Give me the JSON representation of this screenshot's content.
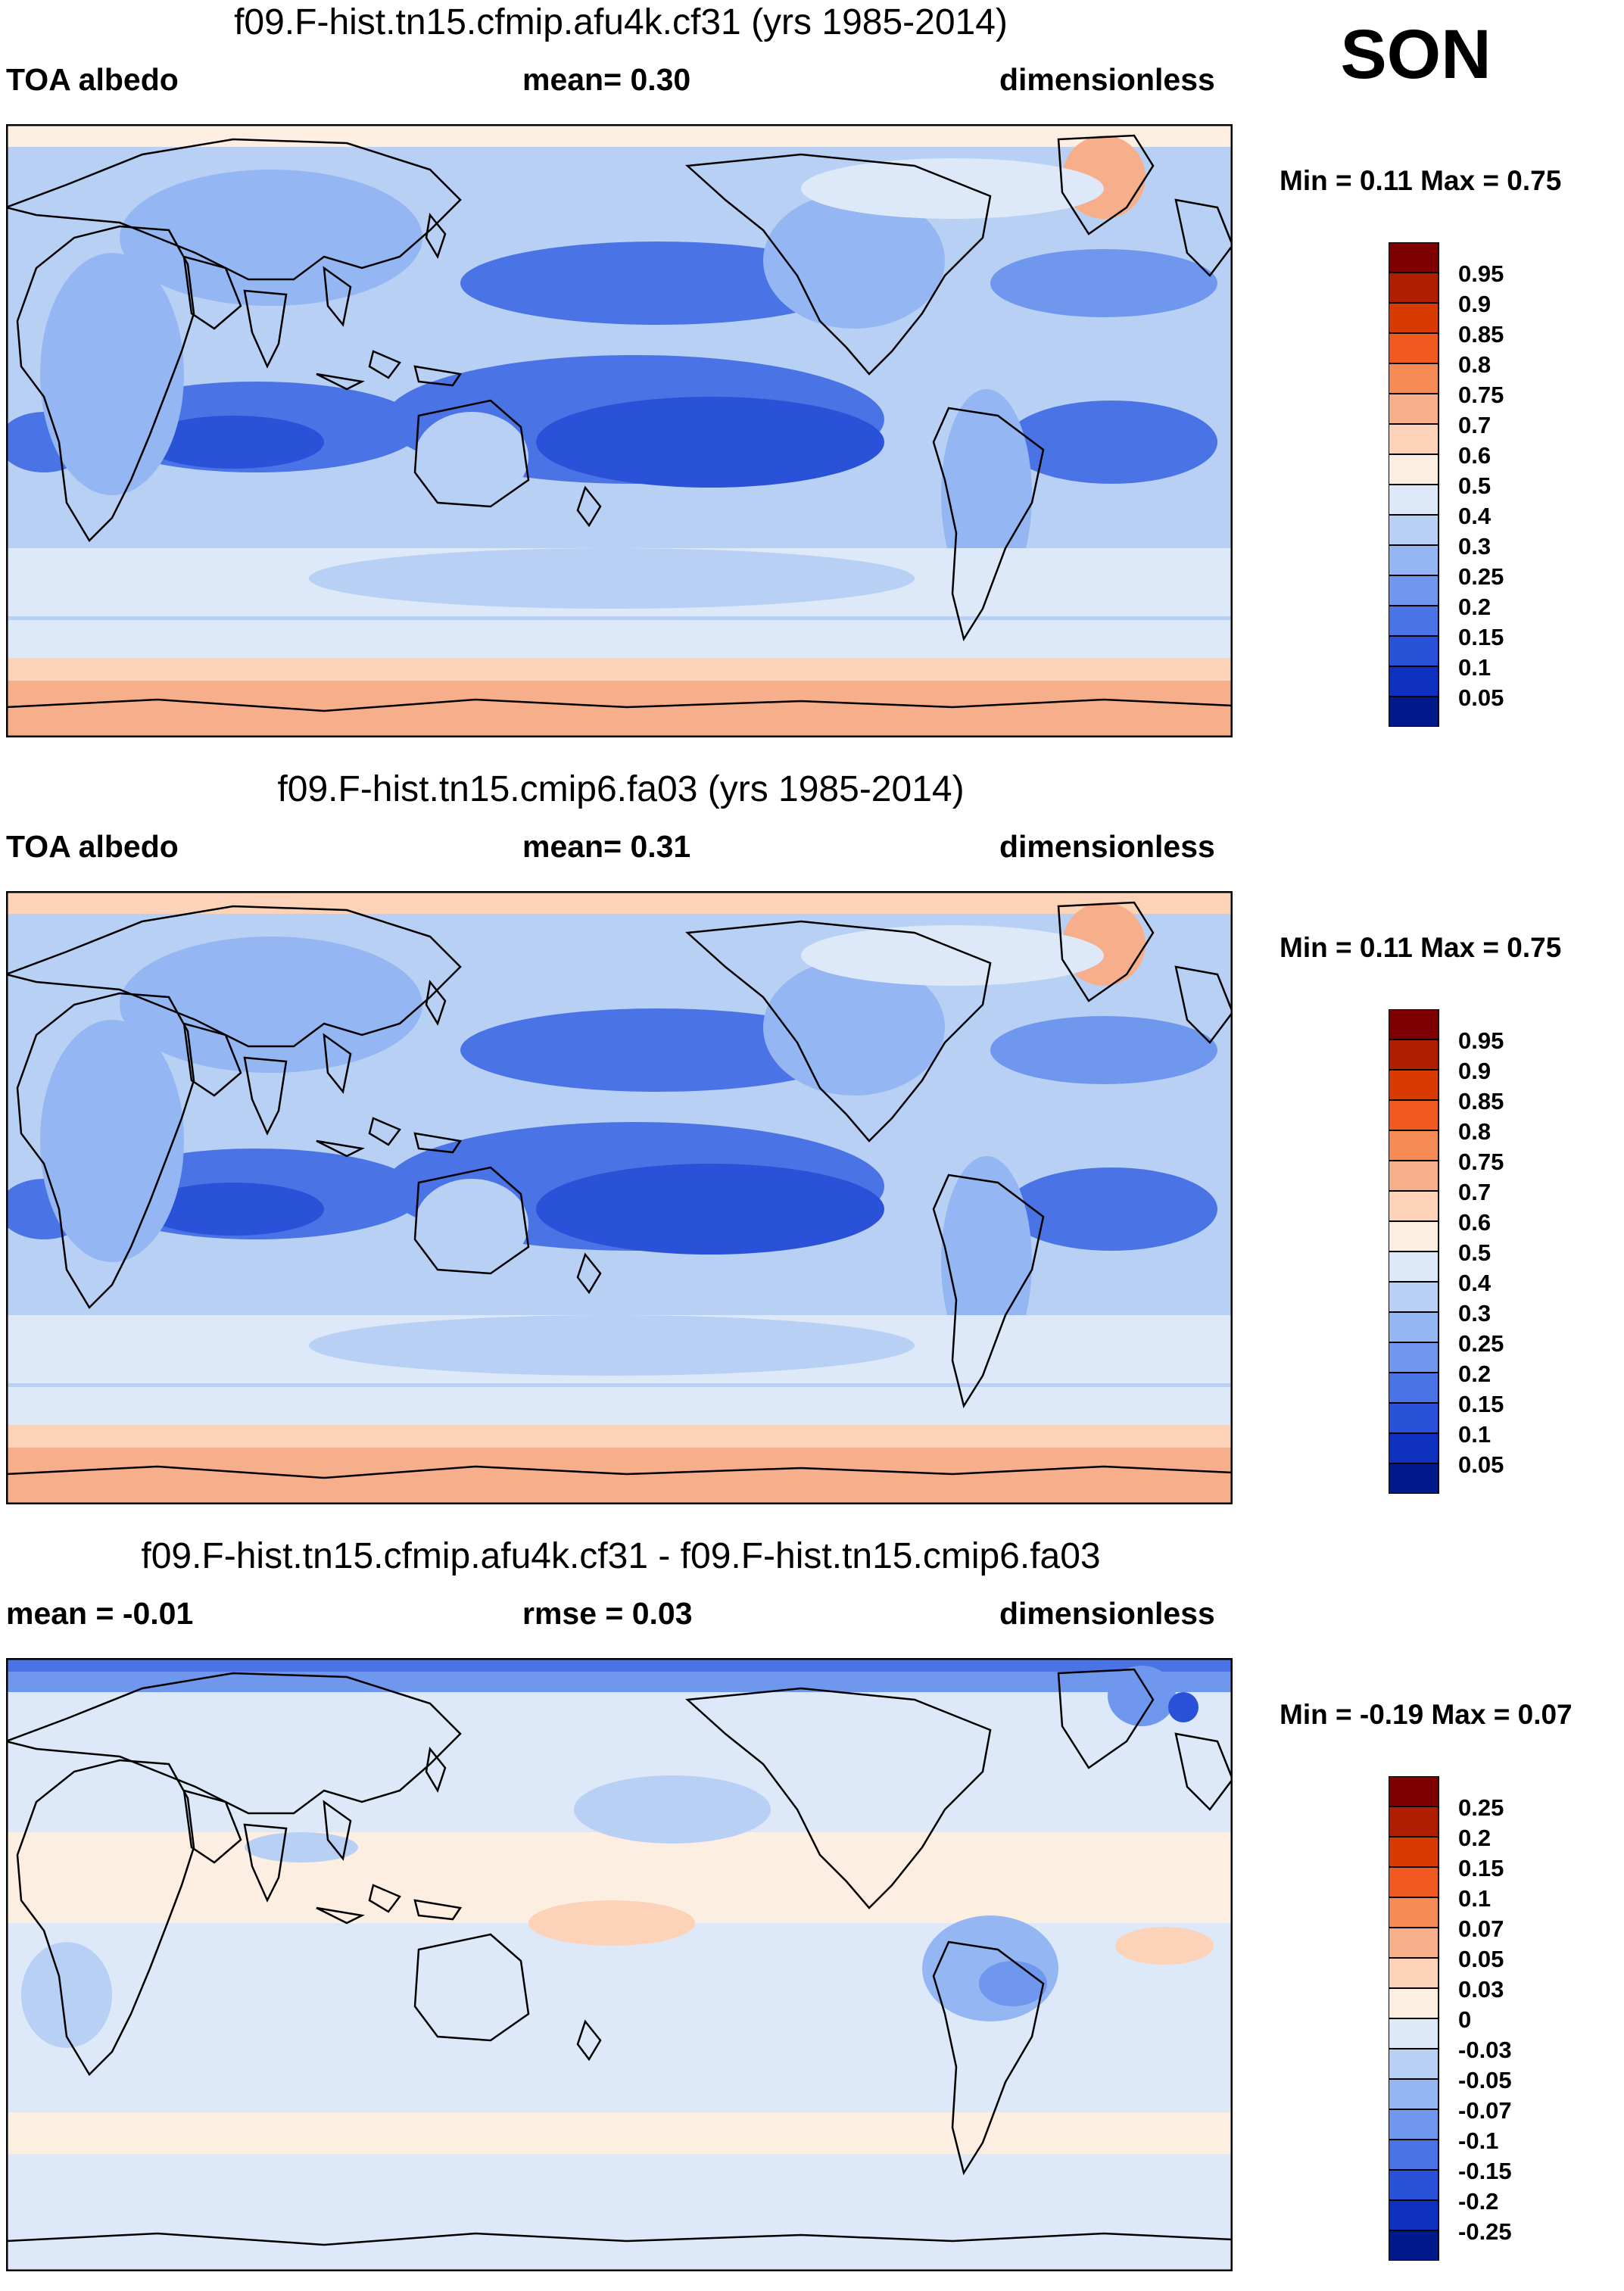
{
  "season": "SON",
  "panels": [
    {
      "title": "f09.F-hist.tn15.cfmip.afu4k.cf31 (yrs 1985-2014)",
      "left_label": "TOA albedo",
      "center_label": "mean=   0.30",
      "right_label": "dimensionless",
      "minmax": "Min =   0.11 Max =   0.75"
    },
    {
      "title": "f09.F-hist.tn15.cmip6.fa03 (yrs 1985-2014)",
      "left_label": "TOA albedo",
      "center_label": "mean=   0.31",
      "right_label": "dimensionless",
      "minmax": "Min =   0.11 Max =   0.75"
    },
    {
      "title": "f09.F-hist.tn15.cfmip.afu4k.cf31 - f09.F-hist.tn15.cmip6.fa03",
      "left_label": "mean =  -0.01",
      "center_label": "rmse =   0.03",
      "right_label": "dimensionless",
      "minmax": "Min =  -0.19 Max =   0.07"
    }
  ],
  "chart_data": [
    {
      "type": "heatmap",
      "title": "f09.F-hist.tn15.cfmip.afu4k.cf31 (yrs 1985-2014)",
      "variable": "TOA albedo",
      "units": "dimensionless",
      "mean": 0.3,
      "min": 0.11,
      "max": 0.75,
      "projection": "global cylindrical, Pacific-centered",
      "colorbar": {
        "labels": [
          "0.95",
          "0.9",
          "0.85",
          "0.8",
          "0.75",
          "0.7",
          "0.6",
          "0.5",
          "0.4",
          "0.3",
          "0.25",
          "0.2",
          "0.15",
          "0.1",
          "0.05"
        ],
        "colors": [
          "#7f0000",
          "#b01e00",
          "#d93a00",
          "#f0591f",
          "#f58a55",
          "#f7ae8a",
          "#fcd2b8",
          "#fdeee2",
          "#dde9f8",
          "#b9d0f5",
          "#94b6f2",
          "#6f97ee",
          "#4a74e6",
          "#2a52d8",
          "#0d30bf",
          "#001a8c"
        ]
      }
    },
    {
      "type": "heatmap",
      "title": "f09.F-hist.tn15.cmip6.fa03 (yrs 1985-2014)",
      "variable": "TOA albedo",
      "units": "dimensionless",
      "mean": 0.31,
      "min": 0.11,
      "max": 0.75,
      "projection": "global cylindrical, Pacific-centered",
      "colorbar": {
        "labels": [
          "0.95",
          "0.9",
          "0.85",
          "0.8",
          "0.75",
          "0.7",
          "0.6",
          "0.5",
          "0.4",
          "0.3",
          "0.25",
          "0.2",
          "0.15",
          "0.1",
          "0.05"
        ],
        "colors": [
          "#7f0000",
          "#b01e00",
          "#d93a00",
          "#f0591f",
          "#f58a55",
          "#f7ae8a",
          "#fcd2b8",
          "#fdeee2",
          "#dde9f8",
          "#b9d0f5",
          "#94b6f2",
          "#6f97ee",
          "#4a74e6",
          "#2a52d8",
          "#0d30bf",
          "#001a8c"
        ]
      }
    },
    {
      "type": "heatmap",
      "title": "f09.F-hist.tn15.cfmip.afu4k.cf31 - f09.F-hist.tn15.cmip6.fa03",
      "units": "dimensionless",
      "mean": -0.01,
      "rmse": 0.03,
      "min": -0.19,
      "max": 0.07,
      "projection": "global cylindrical, Pacific-centered",
      "colorbar": {
        "labels": [
          "0.25",
          "0.2",
          "0.15",
          "0.1",
          "0.07",
          "0.05",
          "0.03",
          "0",
          "-0.03",
          "-0.05",
          "-0.07",
          "-0.1",
          "-0.15",
          "-0.2",
          "-0.25"
        ],
        "colors": [
          "#7f0000",
          "#b01e00",
          "#d93a00",
          "#f0591f",
          "#f58a55",
          "#f7ae8a",
          "#fcd2b8",
          "#fdeee2",
          "#dde9f8",
          "#b9d0f5",
          "#94b6f2",
          "#6f97ee",
          "#4a74e6",
          "#2a52d8",
          "#0d30bf",
          "#001a8c"
        ]
      }
    }
  ]
}
